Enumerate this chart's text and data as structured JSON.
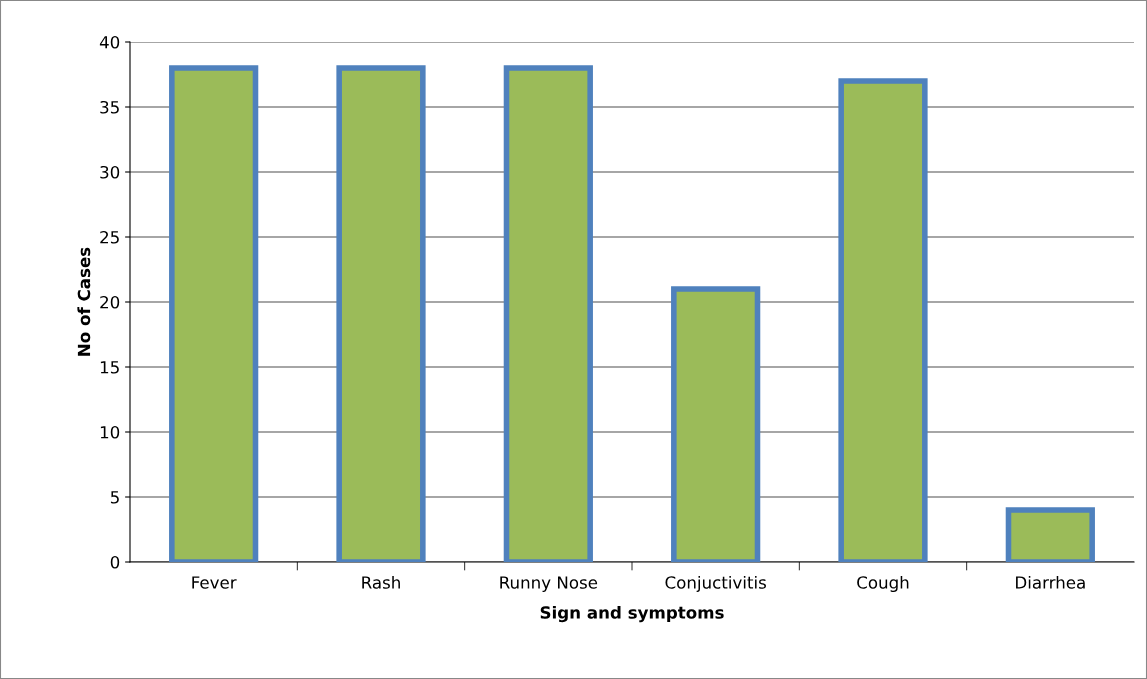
{
  "chart_data": {
    "type": "bar",
    "xlabel": "Sign and symptoms",
    "ylabel": "No of Cases",
    "categories": [
      "Fever",
      "Rash",
      "Runny Nose",
      "Conjuctivitis",
      "Cough",
      "Diarrhea"
    ],
    "values": [
      38,
      38,
      38,
      21,
      37,
      4
    ],
    "color": "#9bbb59",
    "ylim": [
      0,
      40
    ],
    "yticks": [
      0,
      5,
      10,
      15,
      20,
      25,
      30,
      35,
      40
    ],
    "grid": "y"
  }
}
